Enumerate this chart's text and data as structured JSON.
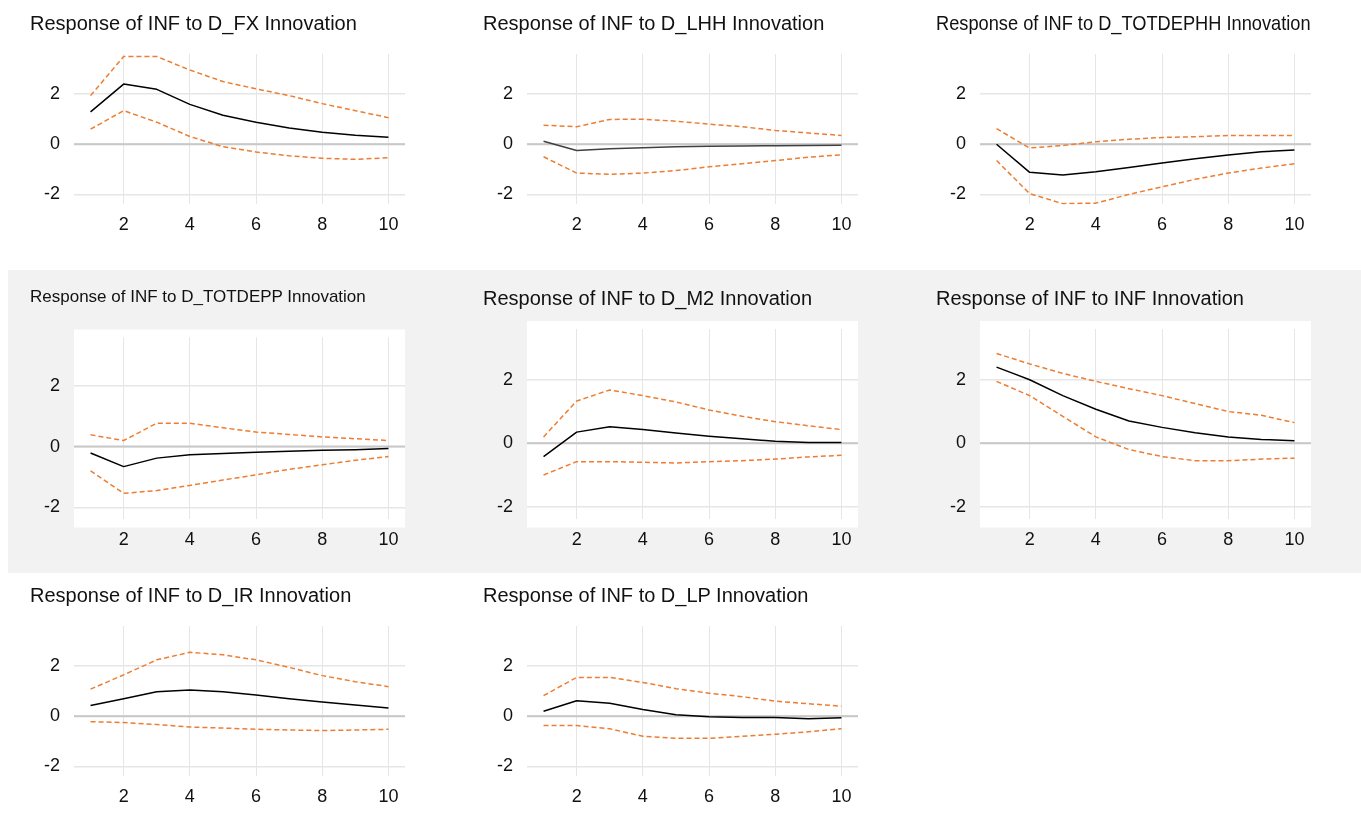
{
  "chart_data": [
    {
      "type": "line",
      "title": "Response of INF to D_FX Innovation",
      "categories": [
        null,
        "2",
        null,
        "4",
        null,
        "6",
        null,
        "8",
        null,
        "10"
      ],
      "ylim": [
        -2.4,
        3.6
      ],
      "yticks": [
        -2,
        0,
        2
      ],
      "grid": true,
      "ref_lines": [
        {
          "axis": "y",
          "value": 0,
          "color": "#c8c8c8"
        }
      ],
      "series": [
        {
          "color": "#000000",
          "line_style": "solid",
          "values": [
            1.29,
            2.4,
            2.19,
            1.59,
            1.16,
            0.88,
            0.65,
            0.48,
            0.36,
            0.28
          ]
        },
        {
          "color": "#ed7d31",
          "line_style": "dashed",
          "values": [
            1.94,
            3.5,
            3.5,
            2.96,
            2.5,
            2.21,
            1.94,
            1.62,
            1.34,
            1.06
          ]
        },
        {
          "color": "#ed7d31",
          "line_style": "dashed",
          "values": [
            0.6,
            1.34,
            0.88,
            0.31,
            -0.1,
            -0.31,
            -0.46,
            -0.56,
            -0.6,
            -0.54
          ]
        }
      ]
    },
    {
      "type": "line",
      "title": "Response of INF to D_LHH Innovation",
      "categories": [
        null,
        "2",
        null,
        "4",
        null,
        "6",
        null,
        "8",
        null,
        "10"
      ],
      "ylim": [
        -2.4,
        3.6
      ],
      "yticks": [
        -2,
        0,
        2
      ],
      "grid": true,
      "ref_lines": [
        {
          "axis": "y",
          "value": 0,
          "color": "#c8c8c8"
        }
      ],
      "series": [
        {
          "color": "#404040",
          "line_style": "solid",
          "values": [
            0.12,
            -0.25,
            -0.18,
            -0.14,
            -0.1,
            -0.08,
            -0.07,
            -0.06,
            -0.05,
            -0.04
          ]
        },
        {
          "color": "#ed7d31",
          "line_style": "dashed",
          "values": [
            0.76,
            0.7,
            0.99,
            1.0,
            0.92,
            0.8,
            0.7,
            0.55,
            0.45,
            0.35
          ]
        },
        {
          "color": "#ed7d31",
          "line_style": "dashed",
          "values": [
            -0.5,
            -1.15,
            -1.2,
            -1.15,
            -1.05,
            -0.9,
            -0.78,
            -0.65,
            -0.52,
            -0.42
          ]
        }
      ]
    },
    {
      "type": "line",
      "title": "Response of INF to D_TOTDEPHH Innovation",
      "categories": [
        null,
        "2",
        null,
        "4",
        null,
        "6",
        null,
        "8",
        null,
        "10"
      ],
      "ylim": [
        -2.4,
        3.6
      ],
      "yticks": [
        -2,
        0,
        2
      ],
      "grid": true,
      "ref_lines": [
        {
          "axis": "y",
          "value": 0,
          "color": "#c8c8c8"
        }
      ],
      "series": [
        {
          "color": "#000000",
          "line_style": "solid",
          "values": [
            0,
            -1.12,
            -1.23,
            -1.1,
            -0.93,
            -0.75,
            -0.58,
            -0.43,
            -0.3,
            -0.23
          ]
        },
        {
          "color": "#ed7d31",
          "line_style": "dashed",
          "values": [
            0.62,
            -0.15,
            -0.05,
            0.1,
            0.2,
            0.27,
            0.3,
            0.35,
            0.35,
            0.35
          ]
        },
        {
          "color": "#ed7d31",
          "line_style": "dashed",
          "values": [
            -0.65,
            -1.97,
            -2.37,
            -2.35,
            -2.0,
            -1.7,
            -1.4,
            -1.15,
            -0.95,
            -0.78
          ]
        }
      ]
    },
    {
      "type": "line",
      "title": "Response of INF to D_TOTDEPP Innovation",
      "categories": [
        null,
        "2",
        null,
        "4",
        null,
        "6",
        null,
        "8",
        null,
        "10"
      ],
      "ylim": [
        -2.4,
        3.6
      ],
      "yticks": [
        -2,
        0,
        2
      ],
      "grid": true,
      "ref_lines": [
        {
          "axis": "y",
          "value": 0,
          "color": "#c8c8c8"
        }
      ],
      "series": [
        {
          "color": "#000000",
          "line_style": "solid",
          "values": [
            -0.21,
            -0.66,
            -0.38,
            -0.27,
            -0.23,
            -0.19,
            -0.15,
            -0.12,
            -0.1,
            -0.06
          ]
        },
        {
          "color": "#ed7d31",
          "line_style": "dashed",
          "values": [
            0.39,
            0.2,
            0.77,
            0.77,
            0.62,
            0.48,
            0.4,
            0.32,
            0.26,
            0.2
          ]
        },
        {
          "color": "#ed7d31",
          "line_style": "dashed",
          "values": [
            -0.8,
            -1.54,
            -1.45,
            -1.28,
            -1.1,
            -0.93,
            -0.75,
            -0.6,
            -0.45,
            -0.33
          ]
        }
      ]
    },
    {
      "type": "line",
      "title": "Response of INF to D_M2 Innovation",
      "categories": [
        null,
        "2",
        null,
        "4",
        null,
        "6",
        null,
        "8",
        null,
        "10"
      ],
      "ylim": [
        -2.4,
        3.6
      ],
      "yticks": [
        -2,
        0,
        2
      ],
      "grid": true,
      "ref_lines": [
        {
          "axis": "y",
          "value": 0,
          "color": "#c8c8c8"
        }
      ],
      "series": [
        {
          "color": "#000000",
          "line_style": "solid",
          "values": [
            -0.42,
            0.35,
            0.52,
            0.43,
            0.32,
            0.22,
            0.14,
            0.06,
            0.02,
            0.02
          ]
        },
        {
          "color": "#ed7d31",
          "line_style": "dashed",
          "values": [
            0.2,
            1.33,
            1.68,
            1.5,
            1.3,
            1.05,
            0.85,
            0.68,
            0.55,
            0.43
          ]
        },
        {
          "color": "#ed7d31",
          "line_style": "dashed",
          "values": [
            -1.0,
            -0.58,
            -0.58,
            -0.6,
            -0.62,
            -0.58,
            -0.55,
            -0.5,
            -0.43,
            -0.38
          ]
        }
      ]
    },
    {
      "type": "line",
      "title": "Response of INF to INF Innovation",
      "categories": [
        null,
        "2",
        null,
        "4",
        null,
        "6",
        null,
        "8",
        null,
        "10"
      ],
      "ylim": [
        -2.4,
        3.6
      ],
      "yticks": [
        -2,
        0,
        2
      ],
      "grid": true,
      "ref_lines": [
        {
          "axis": "y",
          "value": 0,
          "color": "#c8c8c8"
        }
      ],
      "series": [
        {
          "color": "#000000",
          "line_style": "solid",
          "values": [
            2.4,
            2.0,
            1.5,
            1.07,
            0.7,
            0.5,
            0.33,
            0.2,
            0.12,
            0.08
          ]
        },
        {
          "color": "#ed7d31",
          "line_style": "dashed",
          "values": [
            2.83,
            2.5,
            2.2,
            1.95,
            1.72,
            1.5,
            1.25,
            1.0,
            0.88,
            0.65
          ]
        },
        {
          "color": "#ed7d31",
          "line_style": "dashed",
          "values": [
            1.95,
            1.5,
            0.85,
            0.2,
            -0.2,
            -0.42,
            -0.55,
            -0.55,
            -0.5,
            -0.47
          ]
        }
      ]
    },
    {
      "type": "line",
      "title": "Response of INF to D_IR Innovation",
      "categories": [
        null,
        "2",
        null,
        "4",
        null,
        "6",
        null,
        "8",
        null,
        "10"
      ],
      "ylim": [
        -2.4,
        3.6
      ],
      "yticks": [
        -2,
        0,
        2
      ],
      "grid": true,
      "ref_lines": [
        {
          "axis": "y",
          "value": 0,
          "color": "#c8c8c8"
        }
      ],
      "series": [
        {
          "color": "#000000",
          "line_style": "solid",
          "values": [
            0.43,
            0.7,
            0.98,
            1.05,
            0.98,
            0.85,
            0.7,
            0.57,
            0.45,
            0.33
          ]
        },
        {
          "color": "#ed7d31",
          "line_style": "dashed",
          "values": [
            1.08,
            1.65,
            2.25,
            2.55,
            2.45,
            2.25,
            1.95,
            1.62,
            1.38,
            1.18
          ]
        },
        {
          "color": "#ed7d31",
          "line_style": "dashed",
          "values": [
            -0.22,
            -0.25,
            -0.33,
            -0.43,
            -0.47,
            -0.52,
            -0.55,
            -0.57,
            -0.55,
            -0.52
          ]
        }
      ]
    },
    {
      "type": "line",
      "title": "Response of INF to D_LP Innovation",
      "categories": [
        null,
        "2",
        null,
        "4",
        null,
        "6",
        null,
        "8",
        null,
        "10"
      ],
      "ylim": [
        -2.4,
        3.6
      ],
      "yticks": [
        -2,
        0,
        2
      ],
      "grid": true,
      "ref_lines": [
        {
          "axis": "y",
          "value": 0,
          "color": "#c8c8c8"
        }
      ],
      "series": [
        {
          "color": "#000000",
          "line_style": "solid",
          "values": [
            0.2,
            0.62,
            0.52,
            0.27,
            0.06,
            -0.02,
            -0.05,
            -0.05,
            -0.1,
            -0.06
          ]
        },
        {
          "color": "#ed7d31",
          "line_style": "dashed",
          "values": [
            0.82,
            1.55,
            1.55,
            1.35,
            1.1,
            0.92,
            0.78,
            0.6,
            0.5,
            0.4
          ]
        },
        {
          "color": "#ed7d31",
          "line_style": "dashed",
          "values": [
            -0.37,
            -0.37,
            -0.5,
            -0.8,
            -0.88,
            -0.88,
            -0.8,
            -0.72,
            -0.62,
            -0.5
          ]
        }
      ]
    }
  ]
}
